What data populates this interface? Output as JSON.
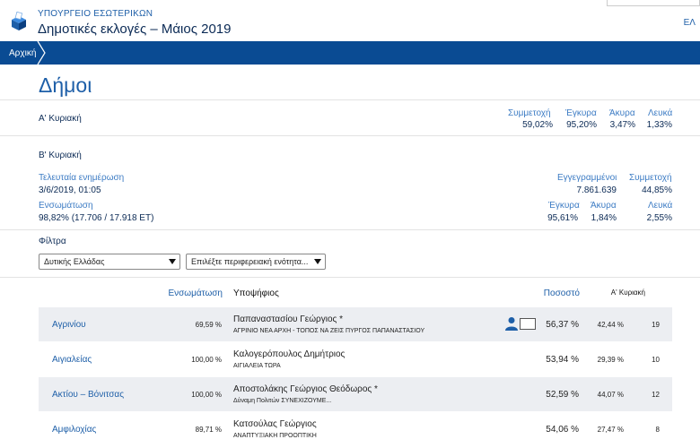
{
  "header": {
    "ministry": "ΥΠΟΥΡΓΕΙΟ ΕΣΩΤΕΡΙΚΩΝ",
    "title": "Δημοτικές εκλογές – Μάιος 2019",
    "language": "ΕΛ",
    "logo_icon": "ballot-box-icon"
  },
  "nav": {
    "breadcrumb": "Αρχική"
  },
  "page": {
    "title": "Δήμοι"
  },
  "first_sunday": {
    "label": "Α' Κυριακή",
    "stats": [
      {
        "label": "Συμμετοχή",
        "value": "59,02%"
      },
      {
        "label": "Έγκυρα",
        "value": "95,20%"
      },
      {
        "label": "Άκυρα",
        "value": "3,47%"
      },
      {
        "label": "Λευκά",
        "value": "1,33%"
      }
    ]
  },
  "second_sunday": {
    "label": "Β' Κυριακή",
    "last_update_label": "Τελευταία ενημέρωση",
    "last_update_value": "3/6/2019, 01:05",
    "integration_label": "Ενσωμάτωση",
    "integration_value": "98,82% (17.706 / 17.918 ΕΤ)",
    "registered_label": "Εγγεγραμμένοι",
    "registered_value": "7.861.639",
    "participation_label": "Συμμετοχή",
    "participation_value": "44,85%",
    "valid_label": "Έγκυρα",
    "valid_value": "95,61%",
    "invalid_label": "Άκυρα",
    "invalid_value": "1,84%",
    "blank_label": "Λευκά",
    "blank_value": "2,55%"
  },
  "filters": {
    "title": "Φίλτρα",
    "region_selected": "Δυτικής Ελλάδας",
    "unit_selected": "Επιλέξτε περιφερειακή ενότητα..."
  },
  "table": {
    "headers": {
      "integration": "Ενσωμάτωση",
      "candidate": "Υποψήφιος",
      "percent": "Ποσοστό",
      "first_sunday": "Α' Κυριακή"
    },
    "rows": [
      {
        "municipality": "Αγρινίου",
        "integration": "69,59 %",
        "candidate": "Παπαναστασίου Γεώργιος *",
        "party": "ΑΓΡΙΝΙΟ ΝΕΑ ΑΡΧΗ - ΤΟΠΟΣ ΝΑ ΖΕΙΣ ΠΥΡΓΟΣ ΠΑΠΑΝΑΣΤΑΣΙΟΥ",
        "percent": "56,37 %",
        "first": "42,44 %",
        "rank": "19"
      },
      {
        "municipality": "Αιγιαλείας",
        "integration": "100,00 %",
        "candidate": "Καλογερόπουλος Δημήτριος",
        "party": "ΑΙΓΙΑΛΕΙΑ ΤΩΡΑ",
        "percent": "53,94 %",
        "first": "29,39 %",
        "rank": "10"
      },
      {
        "municipality": "Ακτίου – Βόνιτσας",
        "integration": "100,00 %",
        "candidate": "Αποστολάκης Γεώργιος Θεόδωρος *",
        "party": "Δύναμη Πολιτών ΣΥΝΕΧΙΖΟΥΜΕ...",
        "percent": "52,59 %",
        "first": "44,07 %",
        "rank": "12"
      },
      {
        "municipality": "Αμφιλοχίας",
        "integration": "89,71 %",
        "candidate": "Κατσούλας Γεώργιος",
        "party": "ΑΝΑΠΤΥΞΙΑΚΗ ΠΡΟΟΠΤΙΚΗ",
        "percent": "54,06 %",
        "first": "27,47 %",
        "rank": "8"
      }
    ]
  },
  "colors": {
    "primary": "#0a4b93",
    "link": "#1e5fa8",
    "dark": "#0b2a55",
    "row_alt": "#eceef2"
  }
}
